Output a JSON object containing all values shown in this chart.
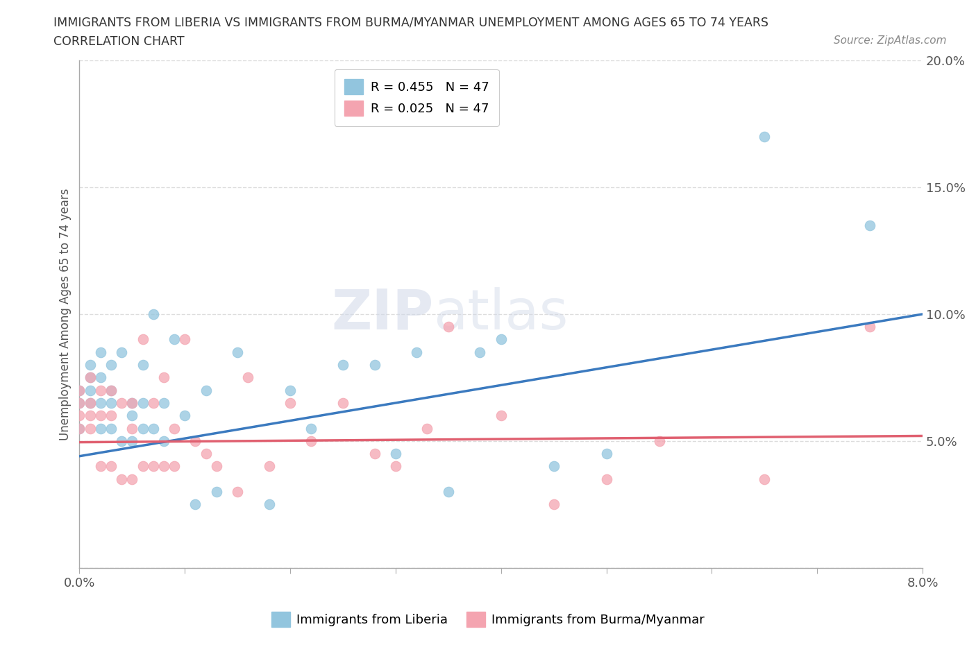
{
  "title_line1": "IMMIGRANTS FROM LIBERIA VS IMMIGRANTS FROM BURMA/MYANMAR UNEMPLOYMENT AMONG AGES 65 TO 74 YEARS",
  "title_line2": "CORRELATION CHART",
  "source_text": "Source: ZipAtlas.com",
  "ylabel": "Unemployment Among Ages 65 to 74 years",
  "xlim": [
    0.0,
    0.08
  ],
  "ylim": [
    0.0,
    0.2
  ],
  "xticks": [
    0.0,
    0.01,
    0.02,
    0.03,
    0.04,
    0.05,
    0.06,
    0.07,
    0.08
  ],
  "yticks": [
    0.0,
    0.05,
    0.1,
    0.15,
    0.2
  ],
  "legend_r1": "R = 0.455",
  "legend_n1": "N = 47",
  "legend_r2": "R = 0.025",
  "legend_n2": "N = 47",
  "color_liberia": "#92c5de",
  "color_burma": "#f4a4b0",
  "line_color_liberia": "#3b7abf",
  "line_color_burma": "#e06070",
  "watermark_zip": "ZIP",
  "watermark_atlas": "atlas",
  "liberia_x": [
    0.0,
    0.0,
    0.0,
    0.001,
    0.001,
    0.001,
    0.001,
    0.002,
    0.002,
    0.002,
    0.002,
    0.003,
    0.003,
    0.003,
    0.003,
    0.004,
    0.004,
    0.005,
    0.005,
    0.005,
    0.006,
    0.006,
    0.006,
    0.007,
    0.007,
    0.008,
    0.008,
    0.009,
    0.01,
    0.011,
    0.012,
    0.013,
    0.015,
    0.018,
    0.02,
    0.022,
    0.025,
    0.028,
    0.03,
    0.032,
    0.035,
    0.038,
    0.04,
    0.045,
    0.05,
    0.065,
    0.075
  ],
  "liberia_y": [
    0.055,
    0.065,
    0.07,
    0.065,
    0.07,
    0.075,
    0.08,
    0.055,
    0.065,
    0.075,
    0.085,
    0.055,
    0.065,
    0.07,
    0.08,
    0.05,
    0.085,
    0.05,
    0.06,
    0.065,
    0.055,
    0.065,
    0.08,
    0.055,
    0.1,
    0.05,
    0.065,
    0.09,
    0.06,
    0.025,
    0.07,
    0.03,
    0.085,
    0.025,
    0.07,
    0.055,
    0.08,
    0.08,
    0.045,
    0.085,
    0.03,
    0.085,
    0.09,
    0.04,
    0.045,
    0.17,
    0.135
  ],
  "burma_x": [
    0.0,
    0.0,
    0.0,
    0.0,
    0.001,
    0.001,
    0.001,
    0.001,
    0.002,
    0.002,
    0.002,
    0.003,
    0.003,
    0.003,
    0.004,
    0.004,
    0.005,
    0.005,
    0.005,
    0.006,
    0.006,
    0.007,
    0.007,
    0.008,
    0.008,
    0.009,
    0.009,
    0.01,
    0.011,
    0.012,
    0.013,
    0.015,
    0.016,
    0.018,
    0.02,
    0.022,
    0.025,
    0.028,
    0.03,
    0.033,
    0.035,
    0.04,
    0.045,
    0.05,
    0.055,
    0.065,
    0.075
  ],
  "burma_y": [
    0.055,
    0.06,
    0.065,
    0.07,
    0.055,
    0.06,
    0.065,
    0.075,
    0.04,
    0.06,
    0.07,
    0.04,
    0.06,
    0.07,
    0.035,
    0.065,
    0.035,
    0.055,
    0.065,
    0.04,
    0.09,
    0.04,
    0.065,
    0.04,
    0.075,
    0.04,
    0.055,
    0.09,
    0.05,
    0.045,
    0.04,
    0.03,
    0.075,
    0.04,
    0.065,
    0.05,
    0.065,
    0.045,
    0.04,
    0.055,
    0.095,
    0.06,
    0.025,
    0.035,
    0.05,
    0.035,
    0.095
  ],
  "liberia_trend_x": [
    0.0,
    0.08
  ],
  "liberia_trend_y": [
    0.044,
    0.1
  ],
  "burma_trend_x": [
    0.0,
    0.08
  ],
  "burma_trend_y": [
    0.0495,
    0.052
  ],
  "background_color": "#ffffff",
  "grid_color": "#dddddd"
}
